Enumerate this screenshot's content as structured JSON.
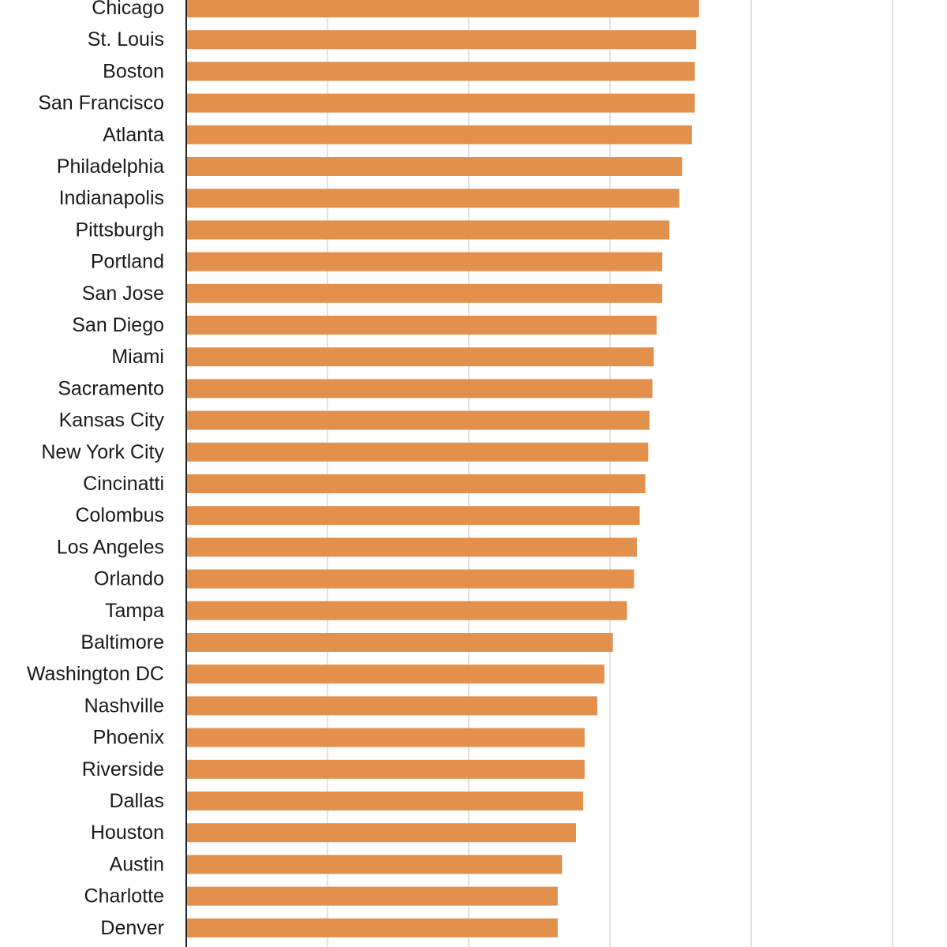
{
  "chart_data": {
    "type": "bar",
    "orientation": "horizontal",
    "title": "",
    "xlabel": "",
    "ylabel": "",
    "xlim": [
      0,
      5
    ],
    "grid": true,
    "bar_color": "#e3904d",
    "gridline_color": "#d9d9d9",
    "axis_color": "#222222",
    "categories": [
      "Chicago",
      "St. Louis",
      "Boston",
      "San Francisco",
      "Atlanta",
      "Philadelphia",
      "Indianapolis",
      "Pittsburgh",
      "Portland",
      "San Jose",
      "San Diego",
      "Miami",
      "Sacramento",
      "Kansas City",
      "New York City",
      "Cincinatti",
      "Colombus",
      "Los Angeles",
      "Orlando",
      "Tampa",
      "Baltimore",
      "Washington DC",
      "Nashville",
      "Phoenix",
      "Riverside",
      "Dallas",
      "Houston",
      "Austin",
      "Charlotte",
      "Denver"
    ],
    "values": [
      3.63,
      3.61,
      3.6,
      3.6,
      3.58,
      3.51,
      3.49,
      3.42,
      3.37,
      3.37,
      3.33,
      3.31,
      3.3,
      3.28,
      3.27,
      3.25,
      3.21,
      3.19,
      3.17,
      3.12,
      3.02,
      2.96,
      2.91,
      2.82,
      2.82,
      2.81,
      2.76,
      2.66,
      2.63,
      2.63
    ]
  }
}
